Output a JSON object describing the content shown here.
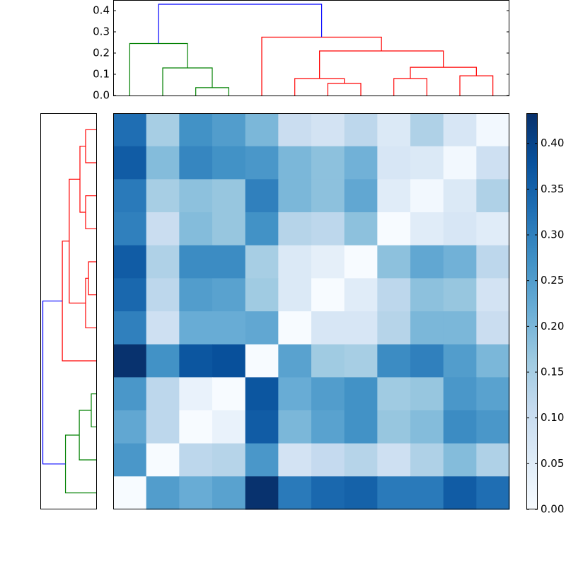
{
  "chart_data": {
    "type": "heatmap",
    "colormap": "Blues",
    "values": [
      [
        0.33,
        0.15,
        0.27,
        0.25,
        0.2,
        0.1,
        0.08,
        0.12,
        0.06,
        0.14,
        0.07,
        0.01
      ],
      [
        0.36,
        0.19,
        0.29,
        0.27,
        0.26,
        0.2,
        0.18,
        0.21,
        0.07,
        0.06,
        0.01,
        0.09
      ],
      [
        0.31,
        0.15,
        0.18,
        0.17,
        0.3,
        0.2,
        0.18,
        0.23,
        0.05,
        0.01,
        0.06,
        0.14
      ],
      [
        0.3,
        0.1,
        0.19,
        0.17,
        0.27,
        0.13,
        0.12,
        0.18,
        0.0,
        0.05,
        0.07,
        0.05
      ],
      [
        0.36,
        0.14,
        0.28,
        0.28,
        0.15,
        0.06,
        0.04,
        0.0,
        0.18,
        0.23,
        0.21,
        0.12
      ],
      [
        0.34,
        0.12,
        0.25,
        0.24,
        0.16,
        0.06,
        0.0,
        0.05,
        0.12,
        0.18,
        0.17,
        0.08
      ],
      [
        0.3,
        0.09,
        0.22,
        0.22,
        0.23,
        0.0,
        0.07,
        0.07,
        0.13,
        0.2,
        0.2,
        0.1
      ],
      [
        0.43,
        0.27,
        0.37,
        0.38,
        0.0,
        0.24,
        0.16,
        0.15,
        0.28,
        0.3,
        0.25,
        0.2
      ],
      [
        0.26,
        0.12,
        0.03,
        0.0,
        0.37,
        0.22,
        0.25,
        0.27,
        0.16,
        0.17,
        0.26,
        0.24
      ],
      [
        0.23,
        0.12,
        0.0,
        0.03,
        0.36,
        0.2,
        0.24,
        0.27,
        0.17,
        0.19,
        0.28,
        0.26
      ],
      [
        0.26,
        0.0,
        0.12,
        0.13,
        0.26,
        0.08,
        0.11,
        0.13,
        0.09,
        0.14,
        0.19,
        0.14
      ],
      [
        0.0,
        0.25,
        0.22,
        0.24,
        0.43,
        0.31,
        0.34,
        0.35,
        0.31,
        0.31,
        0.36,
        0.33
      ]
    ],
    "zlim": [
      0,
      0.433
    ],
    "zticks": [
      {
        "value": 0,
        "label": "0.00"
      },
      {
        "value": 0.05,
        "label": "0.05"
      },
      {
        "value": 0.1,
        "label": "0.10"
      },
      0.15,
      {
        "value": 0.2,
        "label": "0.20"
      },
      0.25,
      {
        "value": 0.3,
        "label": "0.30"
      },
      0.35,
      {
        "value": 0.4,
        "label": "0.40"
      }
    ],
    "dendrograms": [
      {
        "position": "top",
        "xlim": [
          0,
          120
        ],
        "ylim": [
          0,
          0.45
        ],
        "yticks": [
          {
            "value": 0,
            "label": "0.0"
          },
          0.1,
          0.2,
          0.3,
          0.4
        ],
        "links": [
          {
            "color": "#008000",
            "icoord": [
              25,
              25,
              35,
              35
            ],
            "dcoord": [
              0,
              0.037,
              0.037,
              0
            ]
          },
          {
            "color": "#008000",
            "icoord": [
              15,
              15,
              30,
              30
            ],
            "dcoord": [
              0,
              0.13,
              0.13,
              0.037
            ]
          },
          {
            "color": "#008000",
            "icoord": [
              5,
              5,
              22.5,
              22.5
            ],
            "dcoord": [
              0,
              0.245,
              0.245,
              0.13
            ]
          },
          {
            "color": "#ff0000",
            "icoord": [
              65,
              65,
              75,
              75
            ],
            "dcoord": [
              0,
              0.057,
              0.057,
              0
            ]
          },
          {
            "color": "#ff0000",
            "icoord": [
              55,
              55,
              70,
              70
            ],
            "dcoord": [
              0,
              0.08,
              0.08,
              0.057
            ]
          },
          {
            "color": "#ff0000",
            "icoord": [
              85,
              85,
              95,
              95
            ],
            "dcoord": [
              0,
              0.08,
              0.08,
              0
            ]
          },
          {
            "color": "#ff0000",
            "icoord": [
              105,
              105,
              115,
              115
            ],
            "dcoord": [
              0,
              0.093,
              0.093,
              0
            ]
          },
          {
            "color": "#ff0000",
            "icoord": [
              90,
              90,
              110,
              110
            ],
            "dcoord": [
              0.08,
              0.133,
              0.133,
              0.093
            ]
          },
          {
            "color": "#ff0000",
            "icoord": [
              62.5,
              62.5,
              100,
              100
            ],
            "dcoord": [
              0.08,
              0.21,
              0.21,
              0.133
            ]
          },
          {
            "color": "#ff0000",
            "icoord": [
              45,
              45,
              81.25,
              81.25
            ],
            "dcoord": [
              0,
              0.275,
              0.275,
              0.21
            ]
          },
          {
            "color": "#0000ff",
            "icoord": [
              13.75,
              13.75,
              63.125,
              63.125
            ],
            "dcoord": [
              0.245,
              0.43,
              0.43,
              0.275
            ]
          }
        ]
      },
      {
        "position": "left",
        "xlim": [
          0.45,
          0
        ],
        "ylim": [
          120,
          0
        ],
        "links": [
          {
            "color": "#ff0000",
            "icoord": [
              5,
              5,
              15,
              15
            ],
            "dcoord": [
              0,
              0.09,
              0.09,
              0
            ]
          },
          {
            "color": "#ff0000",
            "icoord": [
              25,
              25,
              35,
              35
            ],
            "dcoord": [
              0,
              0.09,
              0.09,
              0
            ]
          },
          {
            "color": "#ff0000",
            "icoord": [
              10,
              10,
              30,
              30
            ],
            "dcoord": [
              0.09,
              0.135,
              0.135,
              0.09
            ]
          },
          {
            "color": "#ff0000",
            "icoord": [
              45,
              45,
              55,
              55
            ],
            "dcoord": [
              0,
              0.067,
              0.067,
              0
            ]
          },
          {
            "color": "#ff0000",
            "icoord": [
              50,
              50,
              65,
              65
            ],
            "dcoord": [
              0.067,
              0.09,
              0.09,
              0
            ]
          },
          {
            "color": "#ff0000",
            "icoord": [
              20,
              20,
              57.5,
              57.5
            ],
            "dcoord": [
              0.135,
              0.22,
              0.22,
              0.09
            ]
          },
          {
            "color": "#ff0000",
            "icoord": [
              38.75,
              38.75,
              75,
              75
            ],
            "dcoord": [
              0.22,
              0.275,
              0.275,
              0
            ]
          },
          {
            "color": "#008000",
            "icoord": [
              85,
              85,
              95,
              95
            ],
            "dcoord": [
              0,
              0.045,
              0.045,
              0
            ]
          },
          {
            "color": "#008000",
            "icoord": [
              90,
              90,
              105,
              105
            ],
            "dcoord": [
              0.045,
              0.14,
              0.14,
              0
            ]
          },
          {
            "color": "#008000",
            "icoord": [
              97.5,
              97.5,
              115,
              115
            ],
            "dcoord": [
              0.14,
              0.25,
              0.25,
              0
            ]
          },
          {
            "color": "#0000ff",
            "icoord": [
              56.875,
              56.875,
              106.25,
              106.25
            ],
            "dcoord": [
              0.275,
              0.43,
              0.43,
              0.25
            ]
          }
        ]
      }
    ]
  }
}
